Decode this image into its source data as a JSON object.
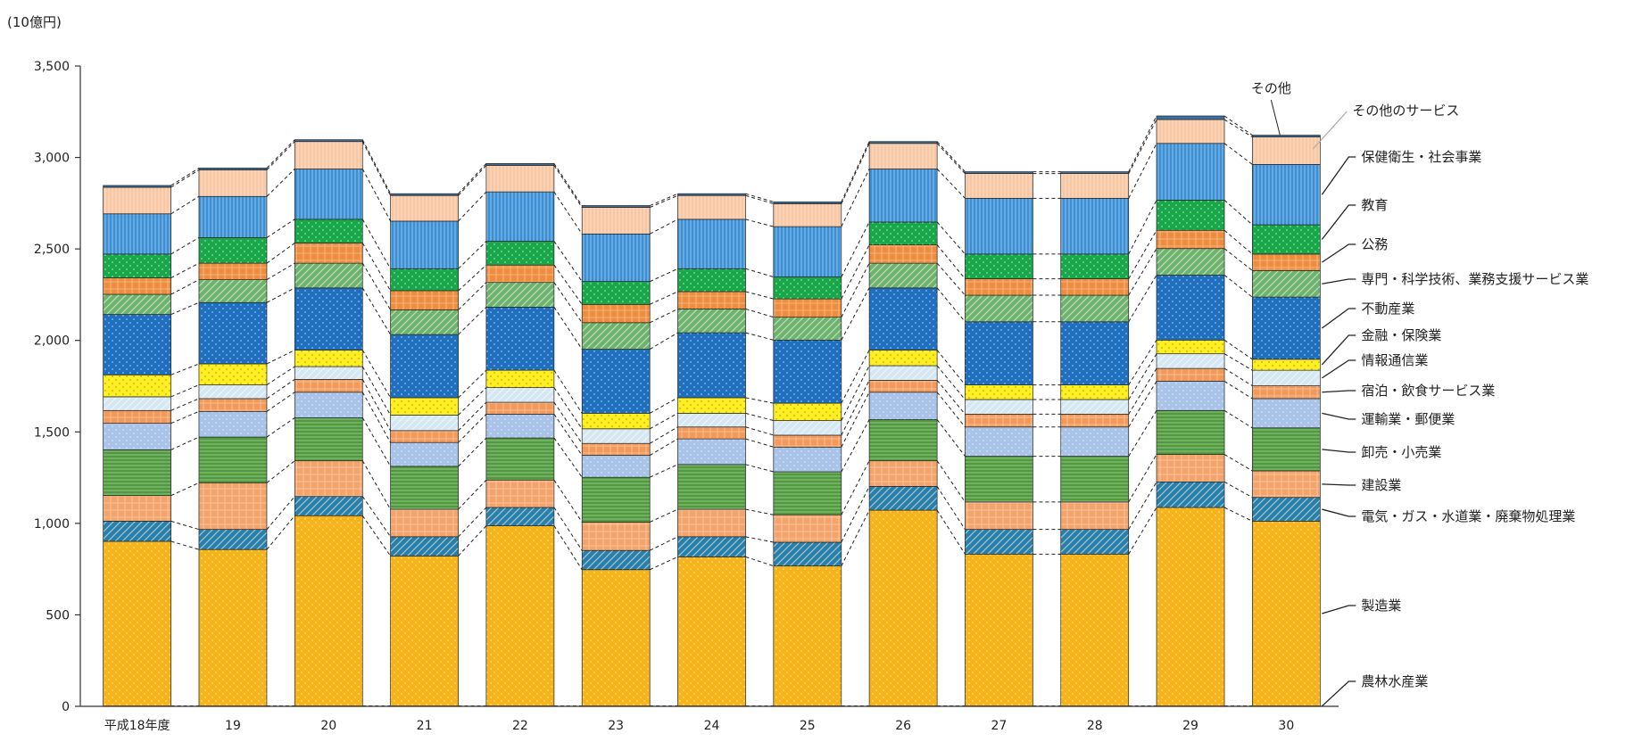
{
  "chart_data": {
    "type": "bar",
    "stacked": true,
    "unit_label": "(10億円)",
    "ylim": [
      0,
      3500
    ],
    "yticks": [
      0,
      500,
      1000,
      1500,
      2000,
      2500,
      3000,
      3500
    ],
    "ytick_labels": [
      "0",
      "500",
      "1,000",
      "1,500",
      "2,000",
      "2,500",
      "3,000",
      "3,500"
    ],
    "categories": [
      "平成18年度",
      "19",
      "20",
      "21",
      "22",
      "23",
      "24",
      "25",
      "26",
      "27",
      "28",
      "29",
      "30"
    ],
    "series": [
      {
        "name": "農林水産業",
        "color": "#f2b01e",
        "values": [
          2,
          2,
          2,
          2,
          2,
          2,
          2,
          2,
          2,
          2,
          2,
          2,
          2
        ]
      },
      {
        "name": "製造業",
        "color": "#f6b41a",
        "values": [
          900,
          855,
          1040,
          820,
          985,
          745,
          815,
          765,
          1070,
          830,
          830,
          1085,
          1010
        ]
      },
      {
        "name": "電気・ガス・水道業・廃棄物処理業",
        "color": "#2a7fa8",
        "values": [
          110,
          110,
          105,
          105,
          100,
          105,
          110,
          130,
          130,
          135,
          135,
          140,
          130
        ]
      },
      {
        "name": "建設業",
        "color": "#f4a46a",
        "values": [
          140,
          255,
          195,
          150,
          150,
          155,
          150,
          150,
          140,
          150,
          150,
          150,
          145
        ]
      },
      {
        "name": "卸売・小売業",
        "color": "#4f9a3c",
        "values": [
          250,
          250,
          235,
          235,
          230,
          245,
          245,
          235,
          225,
          250,
          250,
          240,
          235
        ]
      },
      {
        "name": "運輸業・郵便業",
        "color": "#a9c4e8",
        "values": [
          145,
          140,
          140,
          130,
          130,
          120,
          140,
          135,
          150,
          160,
          160,
          160,
          160
        ]
      },
      {
        "name": "宿泊・飲食サービス業",
        "color": "#f39a5a",
        "values": [
          70,
          70,
          70,
          65,
          65,
          65,
          65,
          65,
          65,
          70,
          70,
          70,
          70
        ]
      },
      {
        "name": "情報通信業",
        "color": "#d6e8f2",
        "values": [
          75,
          75,
          70,
          85,
          80,
          80,
          75,
          80,
          80,
          80,
          80,
          80,
          85
        ]
      },
      {
        "name": "金融・保険業",
        "color": "#ffee22",
        "values": [
          120,
          115,
          90,
          95,
          95,
          85,
          85,
          95,
          85,
          80,
          80,
          75,
          60
        ]
      },
      {
        "name": "不動産業",
        "color": "#1f6fbf",
        "values": [
          330,
          335,
          340,
          345,
          345,
          350,
          355,
          345,
          340,
          345,
          345,
          355,
          340
        ]
      },
      {
        "name": "専門・科学技術、業務支援サービス業",
        "color": "#6db36d",
        "values": [
          110,
          125,
          135,
          135,
          135,
          145,
          130,
          125,
          135,
          145,
          145,
          145,
          145
        ]
      },
      {
        "name": "公務",
        "color": "#ef8d3e",
        "values": [
          90,
          90,
          110,
          105,
          95,
          100,
          95,
          100,
          100,
          90,
          90,
          100,
          90
        ]
      },
      {
        "name": "教育",
        "color": "#18a84a",
        "values": [
          130,
          140,
          130,
          120,
          130,
          125,
          125,
          120,
          125,
          135,
          135,
          165,
          160
        ]
      },
      {
        "name": "保健衛生・社会事業",
        "color": "#3b8fd4",
        "values": [
          220,
          225,
          275,
          260,
          270,
          260,
          270,
          275,
          290,
          305,
          305,
          310,
          330
        ]
      },
      {
        "name": "その他のサービス",
        "color": "#f8c6a2",
        "values": [
          145,
          145,
          150,
          140,
          145,
          145,
          130,
          125,
          140,
          135,
          135,
          130,
          150
        ]
      },
      {
        "name": "その他",
        "color": "#3b6f9d",
        "values": [
          10,
          10,
          10,
          10,
          10,
          10,
          10,
          10,
          10,
          10,
          10,
          20,
          10
        ]
      }
    ]
  }
}
